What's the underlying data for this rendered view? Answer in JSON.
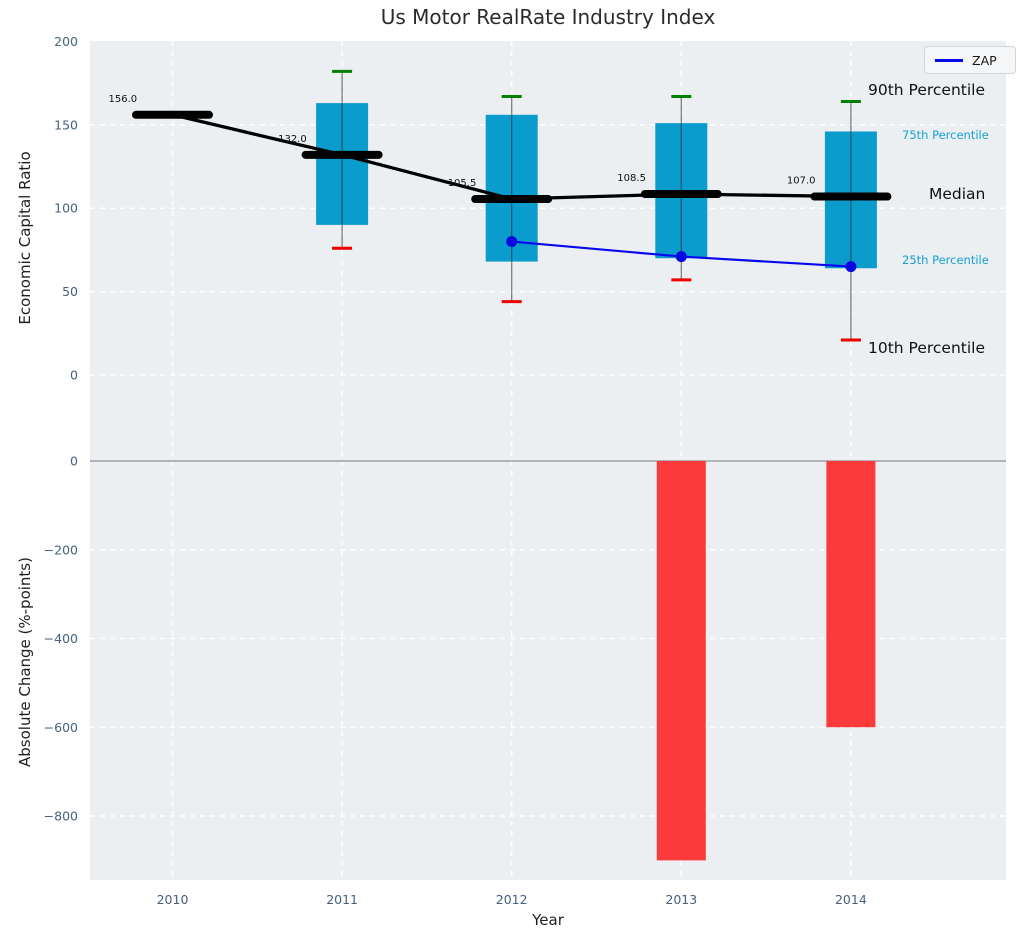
{
  "title": "Us Motor RealRate Industry Index",
  "legend": {
    "label": "ZAP"
  },
  "axes": {
    "xlabel": "Year",
    "xticks": [
      "2010",
      "2011",
      "2012",
      "2013",
      "2014"
    ],
    "top": {
      "ylabel": "Economic Capital Ratio",
      "yticks": [
        200,
        150,
        100,
        50,
        0
      ]
    },
    "bottom": {
      "ylabel": "Absolute Change (%-points)",
      "yticks": [
        0,
        -200,
        -400,
        -600,
        -800
      ]
    }
  },
  "annotations": [
    {
      "text": "90th Percentile"
    },
    {
      "text": "75th Percentile"
    },
    {
      "text": "Median"
    },
    {
      "text": "25th Percentile"
    },
    {
      "text": "10th Percentile"
    }
  ],
  "colors": {
    "plot_bg": "#eceff1",
    "grid": "#ffffff",
    "box_fill": "#0a9ccd",
    "whisker": "rgba(45,45,45,0.6)",
    "cap_top": "#008000",
    "cap_bottom": "#ee0000",
    "median": "#000000",
    "zap_line": "#0808f0",
    "zap_dot": "#0707e0",
    "bar_fill": "#fb3b3b",
    "zero_line": "#b2b2b8",
    "tick_text": "#46627e",
    "annotation_cyan": "#17a0d1"
  },
  "chart_data": [
    {
      "type": "box",
      "title": "Us Motor RealRate Industry Index",
      "ylabel": "Economic Capital Ratio",
      "ylim": [
        -40,
        200
      ],
      "grid": true,
      "categories": [
        "2010",
        "2011",
        "2012",
        "2013",
        "2014"
      ],
      "boxes": [
        {
          "year": "2010",
          "p10": null,
          "p25": null,
          "median": 156.0,
          "p75": null,
          "p90": null,
          "label": "156.0"
        },
        {
          "year": "2011",
          "p10": 76,
          "p25": 90,
          "median": 132.0,
          "p75": 163,
          "p90": 182,
          "label": "132.0"
        },
        {
          "year": "2012",
          "p10": 44,
          "p25": 68,
          "median": 105.5,
          "p75": 156,
          "p90": 167,
          "label": "105.5"
        },
        {
          "year": "2013",
          "p10": 57,
          "p25": 70,
          "median": 108.5,
          "p75": 151,
          "p90": 167,
          "label": "108.5"
        },
        {
          "year": "2014",
          "p10": 21,
          "p25": 64,
          "median": 107.0,
          "p75": 146,
          "p90": 164,
          "label": "107.0"
        }
      ],
      "series": [
        {
          "name": "Median",
          "x": [
            "2010",
            "2011",
            "2012",
            "2013",
            "2014"
          ],
          "values": [
            156.0,
            132.0,
            105.5,
            108.5,
            107.0
          ]
        },
        {
          "name": "ZAP",
          "x": [
            "2012",
            "2013",
            "2014"
          ],
          "values": [
            80,
            71,
            65
          ]
        }
      ],
      "legend_position": "upper right"
    },
    {
      "type": "bar",
      "ylabel": "Absolute Change (%-points)",
      "ylim": [
        -950,
        45
      ],
      "grid": true,
      "categories": [
        "2010",
        "2011",
        "2012",
        "2013",
        "2014"
      ],
      "values": [
        null,
        null,
        null,
        -900,
        -600
      ],
      "xlabel": "Year"
    }
  ]
}
